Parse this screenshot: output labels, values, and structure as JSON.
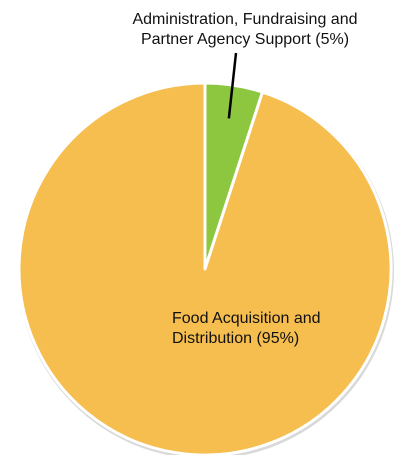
{
  "chart_data": {
    "type": "pie",
    "title": "",
    "slices": [
      {
        "label_line1": "Administration, Fundraising and",
        "label_line2": "Partner Agency Support (5%)",
        "value": 5,
        "color": "#8dc63f"
      },
      {
        "label_line1": "Food Acquisition and",
        "label_line2": "Distribution (95%)",
        "value": 95,
        "color": "#f6bd4f"
      }
    ],
    "start_angle_deg": 0,
    "direction": "clockwise",
    "legend": "none",
    "leader_line_color": "#000000",
    "edge_color": "#ffffff",
    "shadow_color": "#d9d9d9"
  }
}
